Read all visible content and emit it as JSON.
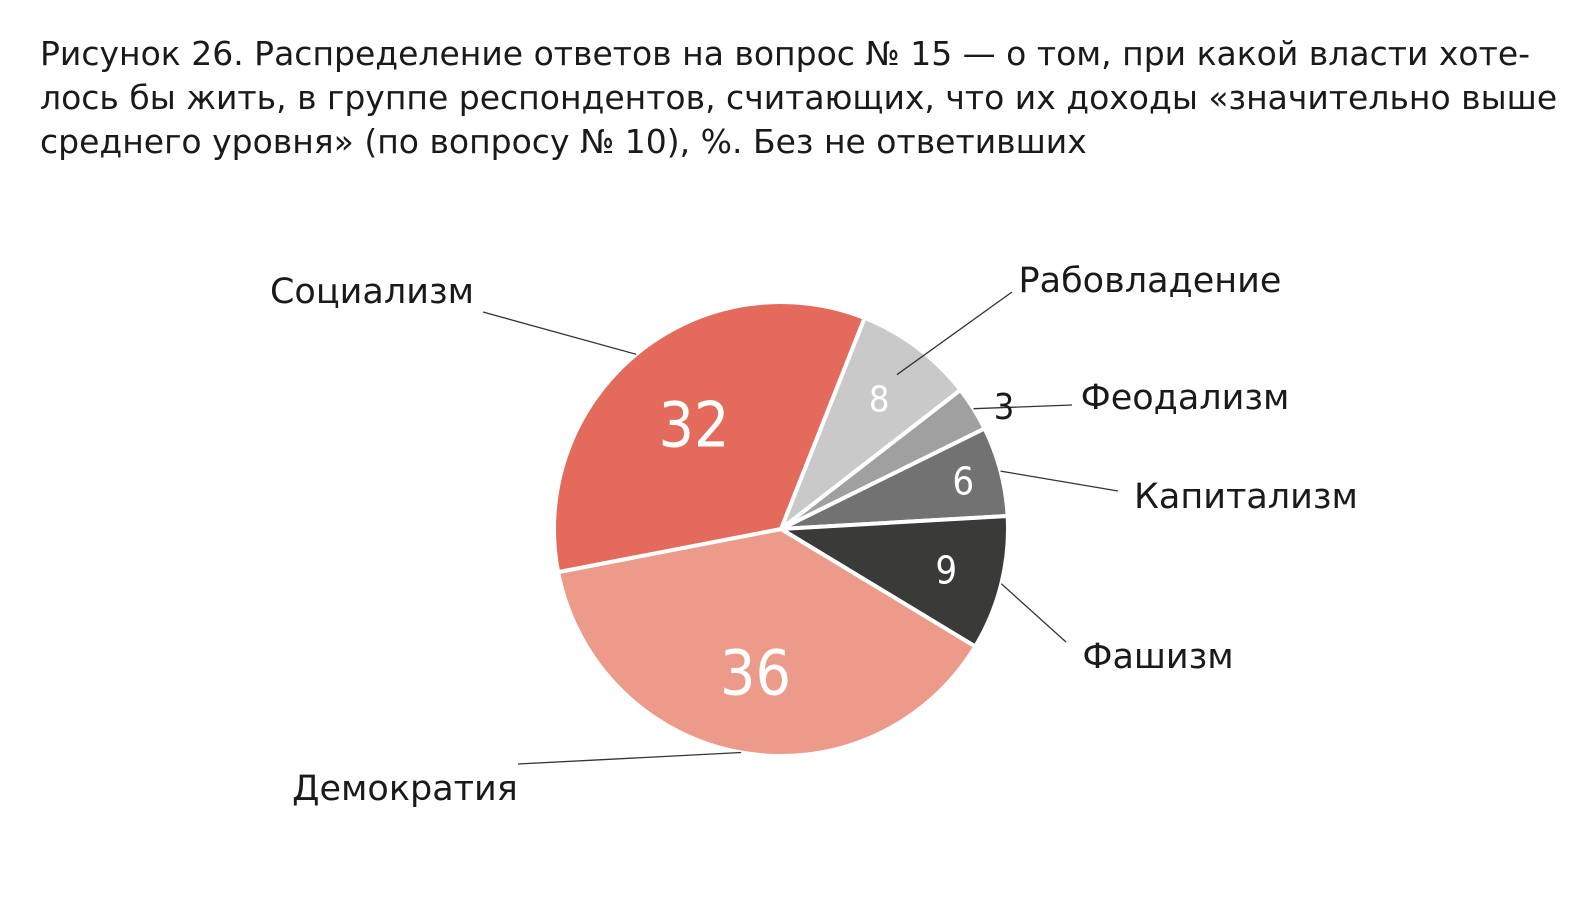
{
  "title_lines": [
    "Рисунок 26. Распределение ответов на вопрос № 15 — о том, при какой власти хоте-",
    "лось бы жить, в группе респондентов, считающих, что их доходы «значительно выше",
    "среднего уровня» (по вопросу № 10), %. Без не ответивших"
  ],
  "chart_data": {
    "type": "pie",
    "title": "Рисунок 26. Распределение ответов на вопрос № 15 — о том, при какой власти хотелось бы жить, в группе респондентов, считающих, что их доходы «значительно выше среднего уровня» (по вопросу № 10), %. Без не ответивших",
    "slices": [
      {
        "label": "Рабовладение",
        "value": 8,
        "value_label": "8",
        "color": "#c9c9c9"
      },
      {
        "label": "Феодализм",
        "value": 3,
        "value_label": "3",
        "color": "#a0a0a0"
      },
      {
        "label": "Капитализм",
        "value": 6,
        "value_label": "6",
        "color": "#727272"
      },
      {
        "label": "Фашизм",
        "value": 9,
        "value_label": "9",
        "color": "#3a3a38"
      },
      {
        "label": "Демократия",
        "value": 36,
        "value_label": "36",
        "color": "#ec9a89"
      },
      {
        "label": "Социализм",
        "value": 32,
        "value_label": "32",
        "color": "#e46a5c"
      }
    ]
  }
}
